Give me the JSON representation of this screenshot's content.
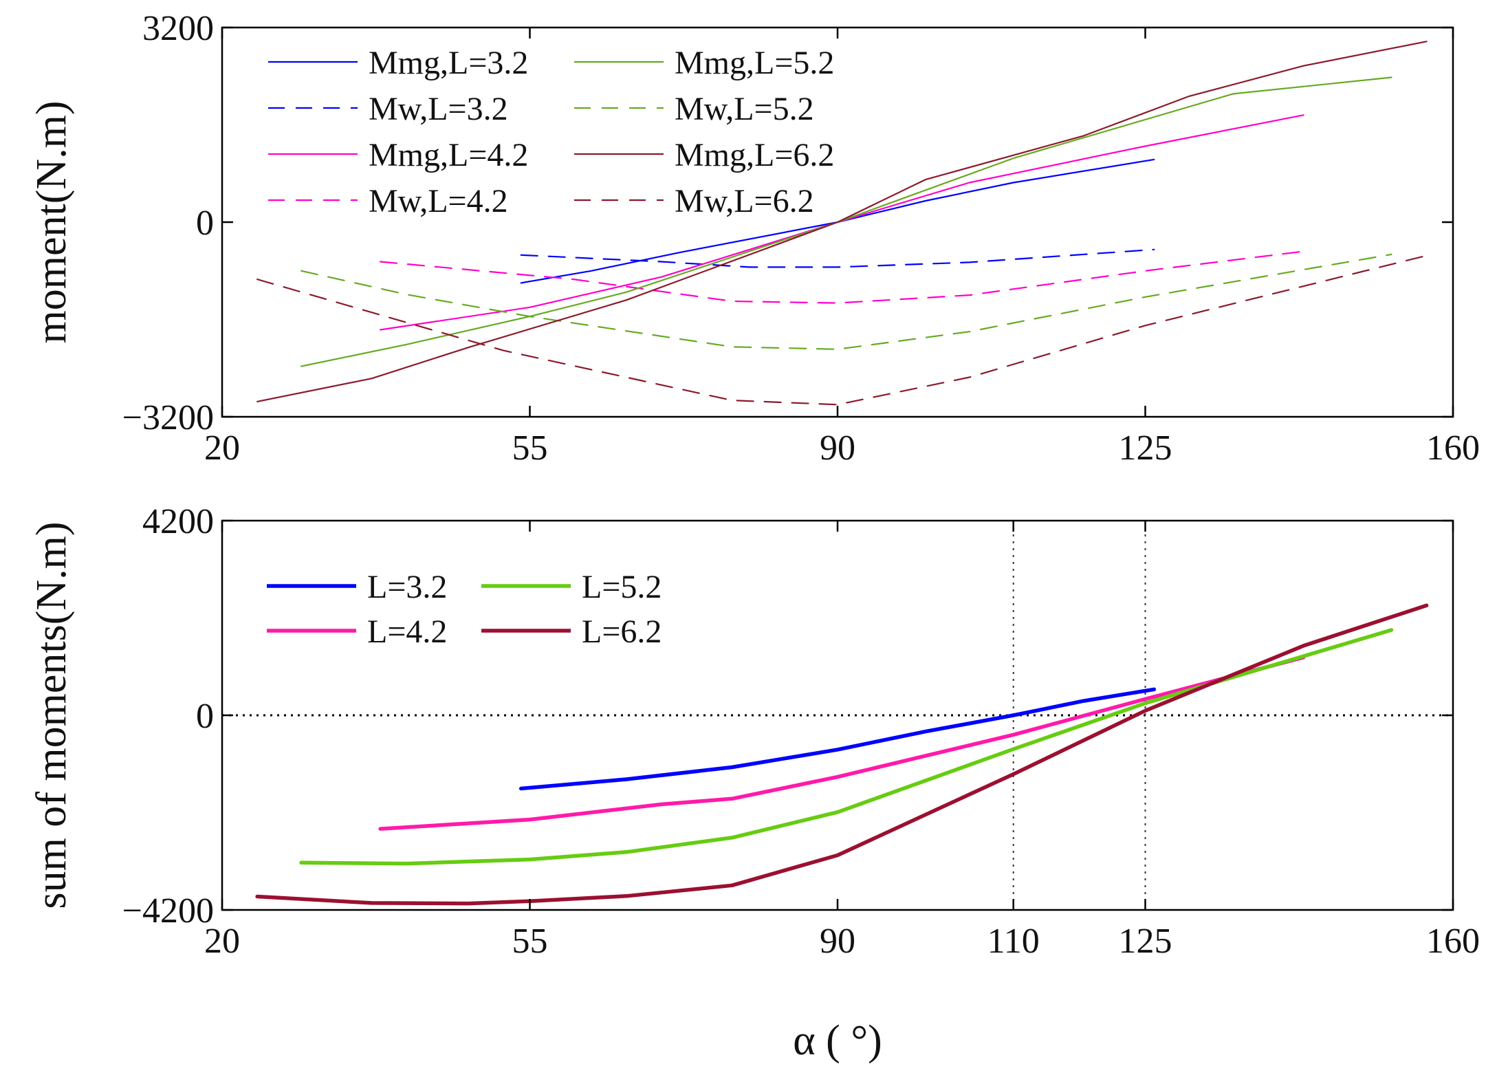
{
  "chart_data": [
    {
      "type": "line",
      "title": "",
      "xlabel": "",
      "ylabel": "moment(N.m)",
      "xlim": [
        20,
        160
      ],
      "ylim": [
        -3200,
        3200
      ],
      "xticks": [
        20,
        55,
        90,
        125,
        160
      ],
      "yticks": [
        -3200,
        0,
        3200
      ],
      "xtick_labels": [
        "20",
        "55",
        "90",
        "125",
        "160"
      ],
      "ytick_labels": [
        "−3200",
        "0",
        "3200"
      ],
      "legend_position": "top-left",
      "legend_columns": 2,
      "series": [
        {
          "name": "Mmg,L=3.2",
          "color": "#0000ff",
          "dash": "solid",
          "x": [
            54,
            62,
            72,
            90,
            100,
            110,
            126
          ],
          "y": [
            -1000,
            -800,
            -500,
            0,
            350,
            650,
            1030
          ]
        },
        {
          "name": "Mw,L=3.2",
          "color": "#0000ff",
          "dash": "dashed",
          "x": [
            54,
            70,
            80,
            90,
            105,
            126
          ],
          "y": [
            -540,
            -650,
            -740,
            -740,
            -660,
            -450
          ]
        },
        {
          "name": "Mmg,L=4.2",
          "color": "#ff00cc",
          "dash": "solid",
          "x": [
            38,
            55,
            70,
            90,
            105,
            125,
            143
          ],
          "y": [
            -1770,
            -1400,
            -900,
            0,
            650,
            1250,
            1760
          ]
        },
        {
          "name": "Mw,L=4.2",
          "color": "#ff00cc",
          "dash": "dashed",
          "x": [
            38,
            60,
            78,
            90,
            105,
            125,
            143
          ],
          "y": [
            -650,
            -940,
            -1300,
            -1330,
            -1200,
            -800,
            -480
          ]
        },
        {
          "name": "Mmg,L=5.2",
          "color": "#66aa22",
          "dash": "solid",
          "x": [
            29,
            41,
            55,
            66,
            90,
            110,
            135,
            153
          ],
          "y": [
            -2370,
            -2010,
            -1550,
            -1150,
            0,
            1050,
            2110,
            2380
          ]
        },
        {
          "name": "Mw,L=5.2",
          "color": "#66aa22",
          "dash": "dashed",
          "x": [
            29,
            41,
            55,
            78,
            90,
            105,
            125,
            153
          ],
          "y": [
            -800,
            -1190,
            -1550,
            -2050,
            -2090,
            -1800,
            -1230,
            -530
          ]
        },
        {
          "name": "Mmg,L=6.2",
          "color": "#8b1a2b",
          "dash": "solid",
          "x": [
            24,
            37,
            48,
            66,
            90,
            100,
            118,
            130,
            143,
            157
          ],
          "y": [
            -2950,
            -2570,
            -2060,
            -1280,
            0,
            700,
            1420,
            2070,
            2570,
            2970
          ]
        },
        {
          "name": "Mw,L=6.2",
          "color": "#8b1a2b",
          "dash": "dashed",
          "x": [
            24,
            52,
            78,
            90,
            105,
            125,
            157
          ],
          "y": [
            -940,
            -2110,
            -2930,
            -3000,
            -2550,
            -1700,
            -550
          ]
        }
      ]
    },
    {
      "type": "line",
      "title": "",
      "xlabel": "α ( °)",
      "ylabel": "sum of moments(N.m)",
      "xlim": [
        20,
        160
      ],
      "ylim": [
        -4200,
        4200
      ],
      "xticks": [
        20,
        55,
        90,
        110,
        125,
        160
      ],
      "yticks": [
        -4200,
        0,
        4200
      ],
      "xtick_labels": [
        "20",
        "55",
        "90",
        "110",
        "125",
        "160"
      ],
      "ytick_labels": [
        "−4200",
        "0",
        "4200"
      ],
      "reference_lines": {
        "horizontal": [
          0
        ],
        "vertical": [
          110,
          125
        ]
      },
      "legend_position": "top-left",
      "legend_columns": 2,
      "series": [
        {
          "name": "L=3.2",
          "color": "#0000ff",
          "x": [
            54,
            66,
            78,
            90,
            100,
            110,
            118,
            126
          ],
          "y": [
            -1580,
            -1380,
            -1120,
            -740,
            -350,
            0,
            310,
            560
          ]
        },
        {
          "name": "L=4.2",
          "color": "#ff1aaa",
          "x": [
            38,
            55,
            70,
            78,
            90,
            110,
            125,
            143
          ],
          "y": [
            -2450,
            -2250,
            -1920,
            -1800,
            -1330,
            -420,
            350,
            1250
          ]
        },
        {
          "name": "L=5.2",
          "color": "#66cc11",
          "x": [
            29,
            41,
            55,
            66,
            78,
            90,
            110,
            125,
            153
          ],
          "y": [
            -3180,
            -3200,
            -3110,
            -2950,
            -2640,
            -2090,
            -730,
            260,
            1840
          ]
        },
        {
          "name": "L=6.2",
          "color": "#9b1030",
          "x": [
            24,
            37,
            48,
            55,
            66,
            78,
            90,
            110,
            125,
            143,
            157
          ],
          "y": [
            -3910,
            -4050,
            -4060,
            -4010,
            -3900,
            -3670,
            -3020,
            -1270,
            100,
            1500,
            2370
          ]
        }
      ]
    }
  ]
}
